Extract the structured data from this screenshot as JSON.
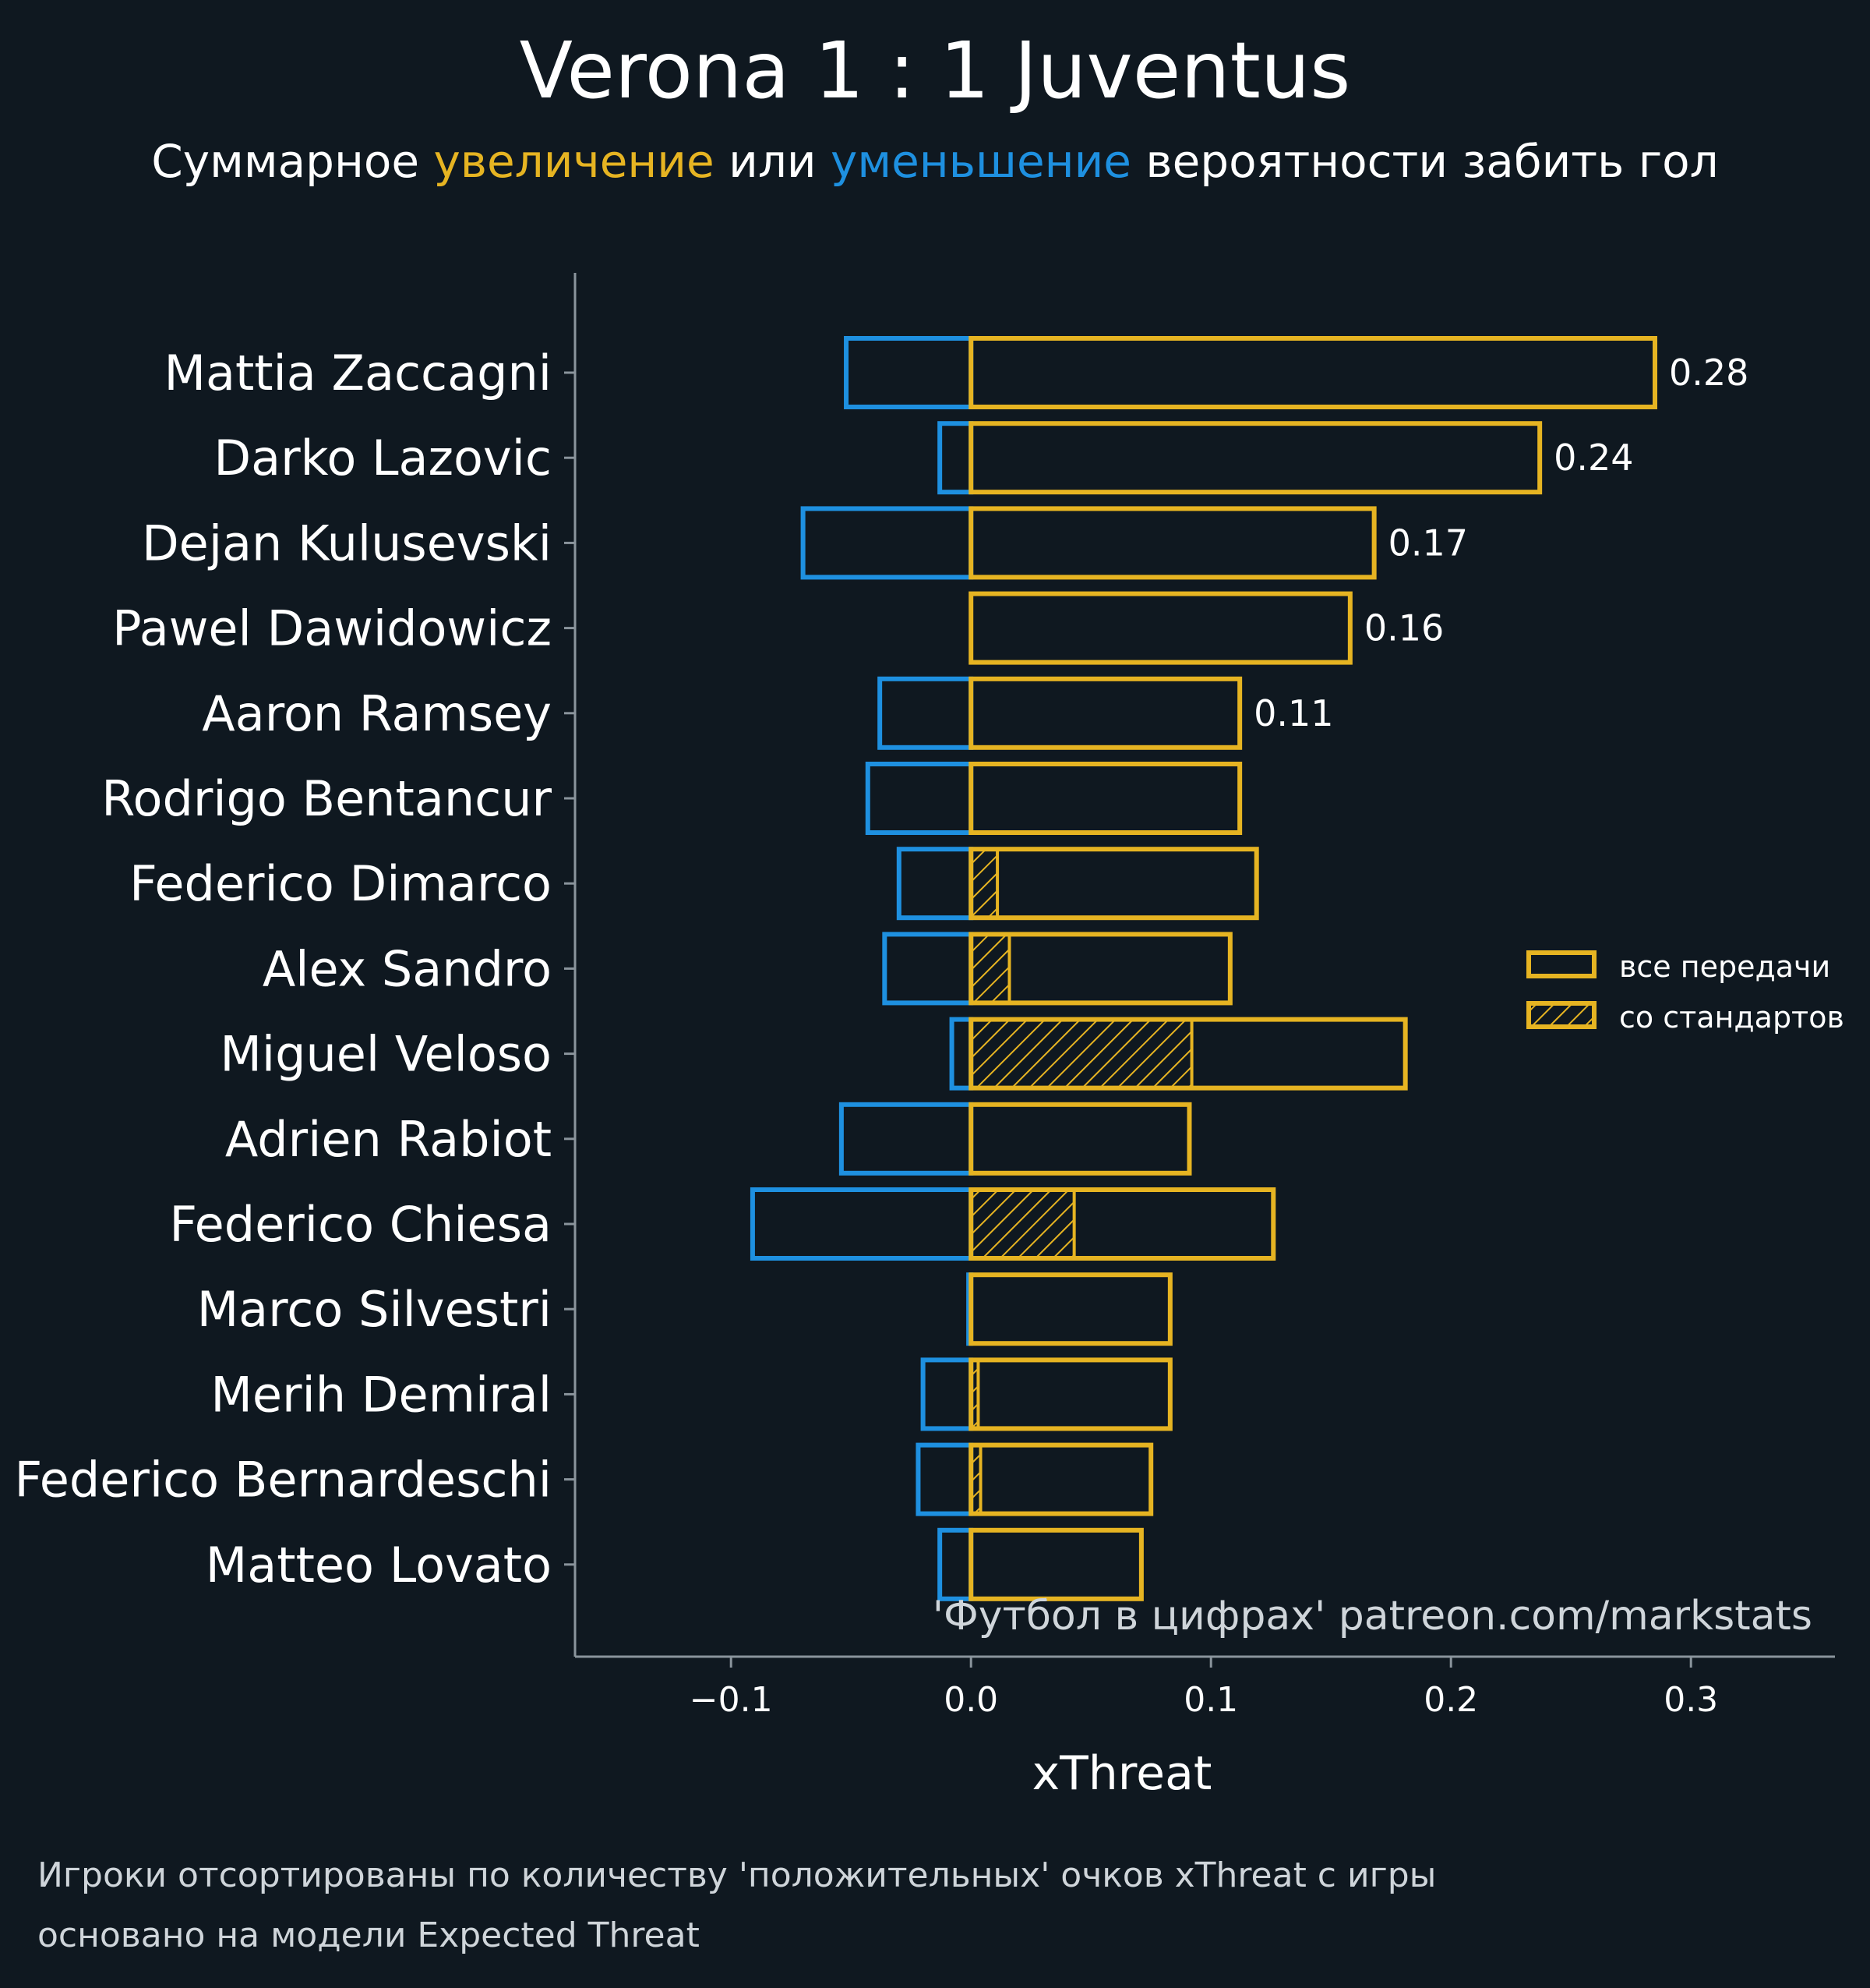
{
  "colors": {
    "background": "#0f1820",
    "positive": "#e6b422",
    "negative": "#1e90e0",
    "axis": "#8a949c",
    "text": "#ffffff",
    "muted": "#cfd5da"
  },
  "header": {
    "title": "Verona 1 : 1 Juventus",
    "subtitle": {
      "part1": "Суммарное ",
      "highlight_increase": "увеличение",
      "part2": " или ",
      "highlight_decrease": "уменьшение",
      "part3": " вероятности забить гол"
    }
  },
  "chart_data": {
    "type": "bar",
    "orientation": "horizontal",
    "xlabel": "xThreat",
    "xlim": [
      -0.165,
      0.36
    ],
    "xticks": [
      -0.1,
      0.0,
      0.1,
      0.2,
      0.3
    ],
    "xtick_labels": [
      "−0.1",
      "0.0",
      "0.1",
      "0.2",
      "0.3"
    ],
    "categories": [
      "Mattia Zaccagni",
      "Darko Lazovic",
      "Dejan Kulusevski",
      "Pawel Dawidowicz",
      "Aaron Ramsey",
      "Rodrigo Bentancur",
      "Federico Dimarco",
      "Alex Sandro",
      "Miguel Veloso",
      "Adrien Rabiot",
      "Federico Chiesa",
      "Marco Silvestri",
      "Merih Demiral",
      "Federico Bernardeschi",
      "Matteo Lovato"
    ],
    "series": [
      {
        "name": "все передачи (+)",
        "values": [
          0.285,
          0.237,
          0.168,
          0.158,
          0.112,
          0.112,
          0.119,
          0.108,
          0.181,
          0.091,
          0.126,
          0.083,
          0.083,
          0.075,
          0.071
        ]
      },
      {
        "name": "все передачи (−)",
        "values": [
          -0.052,
          -0.013,
          -0.07,
          0.0,
          -0.038,
          -0.043,
          -0.03,
          -0.036,
          -0.008,
          -0.054,
          -0.091,
          -0.001,
          -0.02,
          -0.022,
          -0.013
        ]
      },
      {
        "name": "со стандартов",
        "values": [
          0.0,
          0.0,
          0.0,
          0.0,
          0.0,
          0.0,
          0.011,
          0.016,
          0.092,
          0.0,
          0.043,
          0.0,
          0.003,
          0.004,
          0.0
        ]
      }
    ],
    "value_labels": [
      "0.28",
      "0.24",
      "0.17",
      "0.16",
      "0.11",
      "",
      "",
      "",
      "",
      "",
      "",
      "",
      "",
      "",
      ""
    ],
    "legend": {
      "position": "right",
      "items": [
        "все передачи",
        "со стандартов"
      ]
    },
    "watermark": "'Футбол в цифрах' patreon.com/markstats"
  },
  "footnote": {
    "line1": "Игроки отсортированы по количеству 'положительных' очков xThreat с игры",
    "line2": "основано на модели Expected Threat"
  }
}
